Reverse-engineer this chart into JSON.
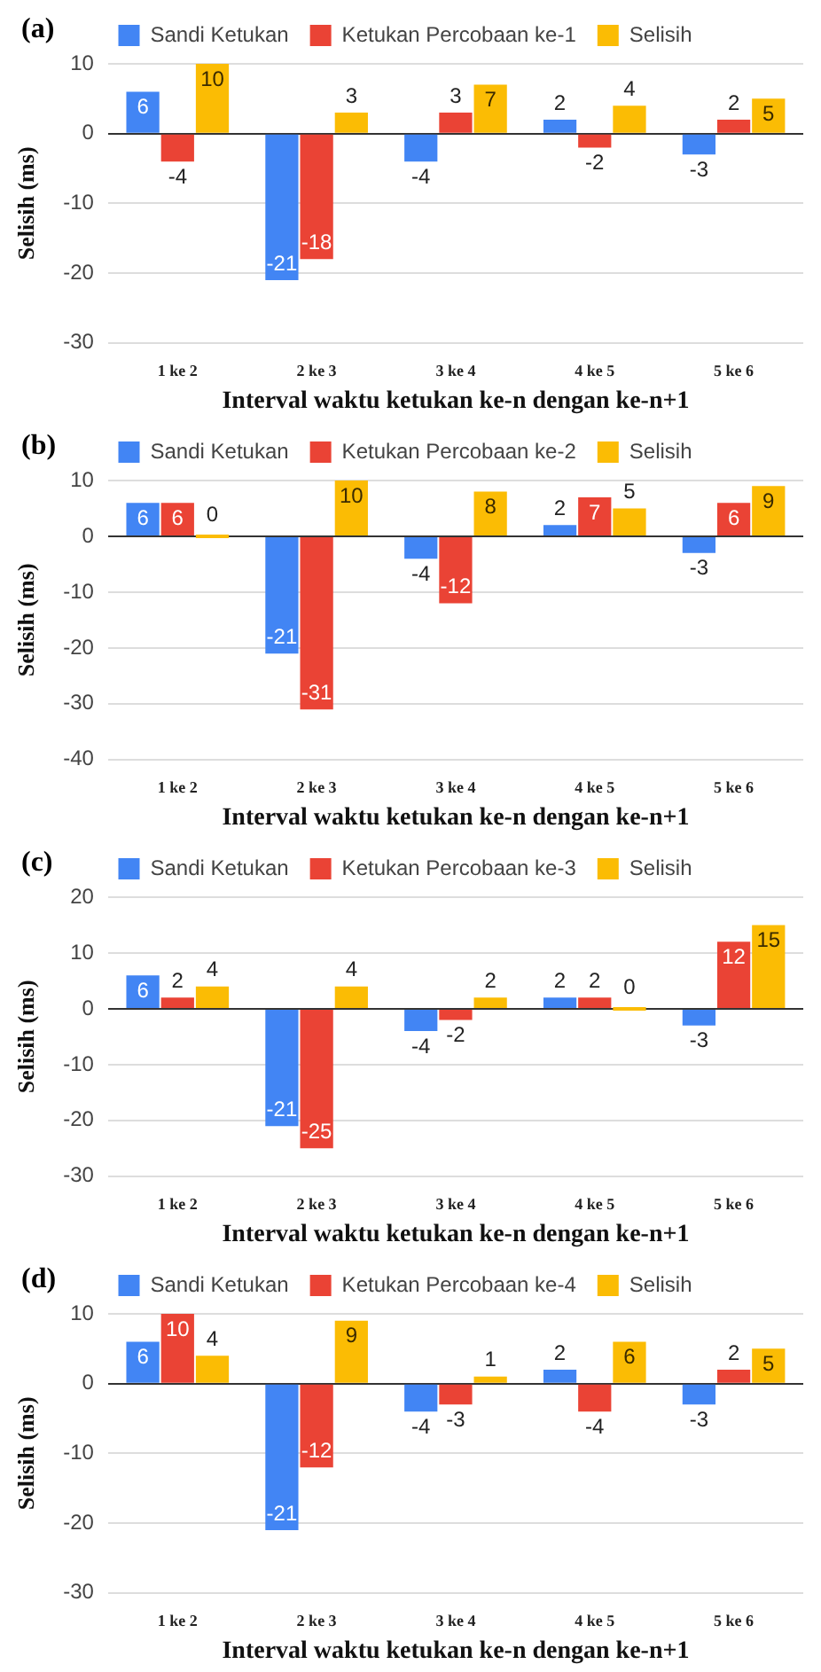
{
  "chart_data": [
    {
      "type": "bar",
      "title": "(a)",
      "xlabel": "Interval waktu ketukan ke-n dengan ke-n+1",
      "ylabel": "Selisih (ms)",
      "categories": [
        "1 ke 2",
        "2 ke 3",
        "3 ke 4",
        "4 ke 5",
        "5 ke 6"
      ],
      "series": [
        {
          "name": "Sandi Ketukan",
          "color": "#4285f4",
          "values": [
            6,
            -21,
            -4,
            2,
            -3
          ]
        },
        {
          "name": "Ketukan Percobaan ke-1",
          "color": "#ea4335",
          "values": [
            -4,
            -18,
            3,
            -2,
            2
          ]
        },
        {
          "name": "Selisih",
          "color": "#fbbc04",
          "values": [
            10,
            3,
            7,
            4,
            5
          ]
        }
      ],
      "ylim": [
        -30,
        10
      ],
      "yticks": [
        -30,
        -20,
        -10,
        0,
        10
      ],
      "grid": "y",
      "legend": "top",
      "data_labels": true
    },
    {
      "type": "bar",
      "title": "(b)",
      "xlabel": "Interval waktu ketukan ke-n dengan ke-n+1",
      "ylabel": "Selisih (ms)",
      "categories": [
        "1 ke 2",
        "2 ke 3",
        "3 ke 4",
        "4 ke 5",
        "5 ke 6"
      ],
      "series": [
        {
          "name": "Sandi Ketukan",
          "color": "#4285f4",
          "values": [
            6,
            -21,
            -4,
            2,
            -3
          ]
        },
        {
          "name": "Ketukan Percobaan ke-2",
          "color": "#ea4335",
          "values": [
            6,
            -31,
            -12,
            7,
            6
          ]
        },
        {
          "name": "Selisih",
          "color": "#fbbc04",
          "values": [
            0,
            10,
            8,
            5,
            9
          ]
        }
      ],
      "ylim": [
        -40,
        10
      ],
      "yticks": [
        -40,
        -30,
        -20,
        -10,
        0,
        10
      ],
      "grid": "y",
      "legend": "top",
      "data_labels": true
    },
    {
      "type": "bar",
      "title": "(c)",
      "xlabel": "Interval waktu ketukan ke-n dengan ke-n+1",
      "ylabel": "Selisih (ms)",
      "categories": [
        "1 ke 2",
        "2 ke 3",
        "3 ke 4",
        "4 ke 5",
        "5 ke 6"
      ],
      "series": [
        {
          "name": "Sandi Ketukan",
          "color": "#4285f4",
          "values": [
            6,
            -21,
            -4,
            2,
            -3
          ]
        },
        {
          "name": "Ketukan Percobaan ke-3",
          "color": "#ea4335",
          "values": [
            2,
            -25,
            -2,
            2,
            12
          ]
        },
        {
          "name": "Selisih",
          "color": "#fbbc04",
          "values": [
            4,
            4,
            2,
            0,
            15
          ]
        }
      ],
      "ylim": [
        -30,
        20
      ],
      "yticks": [
        -30,
        -20,
        -10,
        0,
        10,
        20
      ],
      "grid": "y",
      "legend": "top",
      "data_labels": true
    },
    {
      "type": "bar",
      "title": "(d)",
      "xlabel": "Interval waktu ketukan ke-n dengan ke-n+1",
      "ylabel": "Selisih (ms)",
      "categories": [
        "1 ke 2",
        "2 ke 3",
        "3 ke 4",
        "4 ke 5",
        "5 ke 6"
      ],
      "series": [
        {
          "name": "Sandi Ketukan",
          "color": "#4285f4",
          "values": [
            6,
            -21,
            -4,
            2,
            -3
          ]
        },
        {
          "name": "Ketukan Percobaan ke-4",
          "color": "#ea4335",
          "values": [
            10,
            -12,
            -3,
            -4,
            2
          ]
        },
        {
          "name": "Selisih",
          "color": "#fbbc04",
          "values": [
            4,
            9,
            1,
            6,
            5
          ]
        }
      ],
      "ylim": [
        -30,
        10
      ],
      "yticks": [
        -30,
        -20,
        -10,
        0,
        10
      ],
      "grid": "y",
      "legend": "top",
      "data_labels": true
    }
  ]
}
